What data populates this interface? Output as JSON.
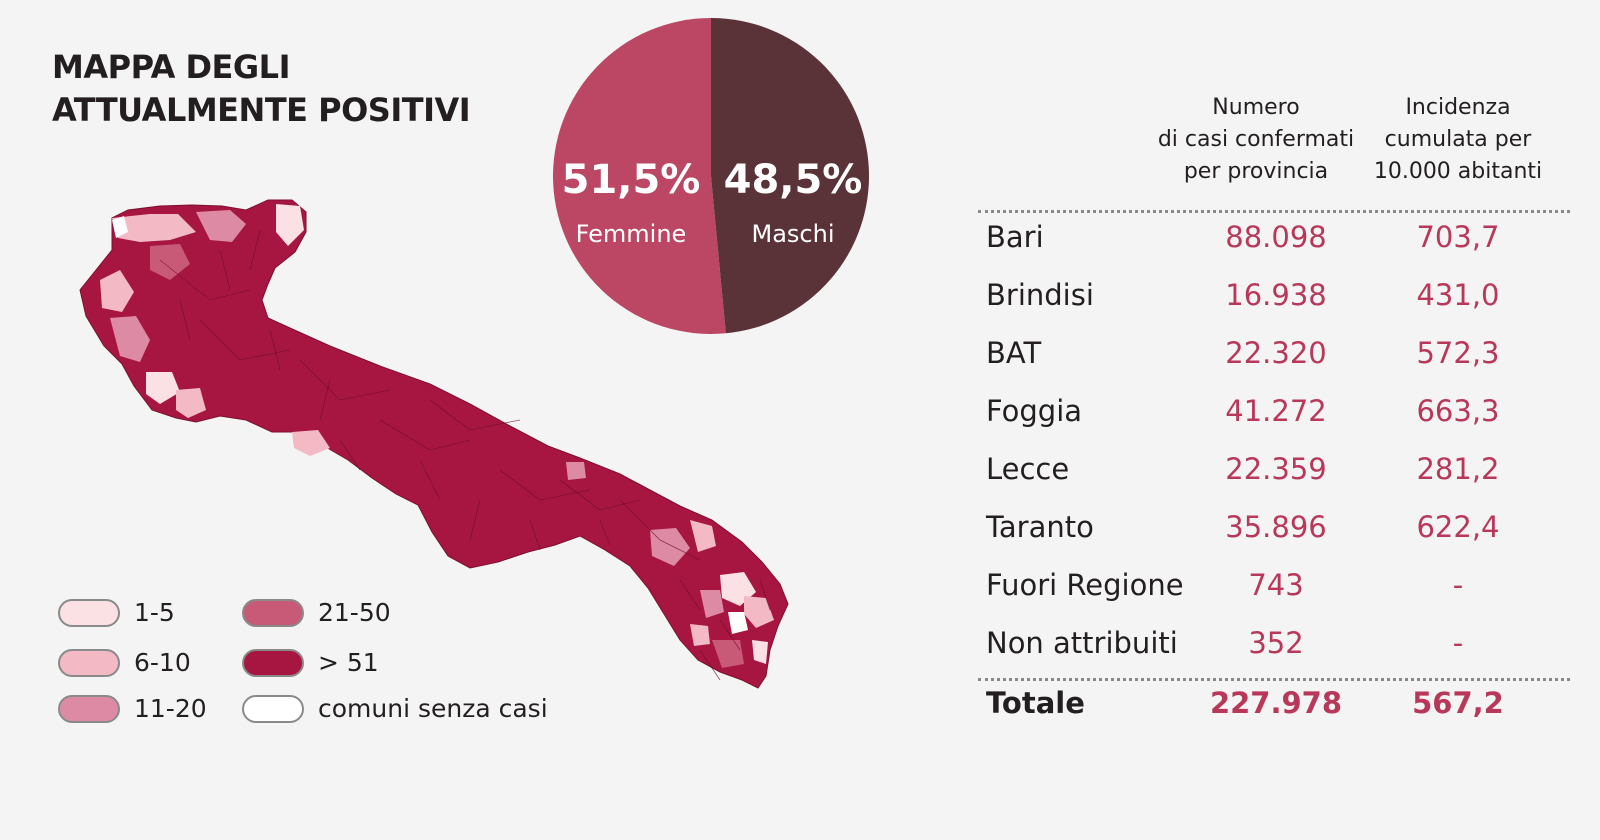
{
  "title": {
    "line1": "MAPPA DEGLI",
    "line2": "ATTUALMENTE POSITIVI"
  },
  "legend": [
    {
      "label": "1-5",
      "color": "#fbe1e3"
    },
    {
      "label": "21-50",
      "color": "#c85a77"
    },
    {
      "label": "6-10",
      "color": "#f3b9c5"
    },
    {
      "label": "> 51",
      "color": "#a71641"
    },
    {
      "label": "11-20",
      "color": "#dd8ba4"
    },
    {
      "label": "comuni senza casi",
      "color": "#ffffff"
    }
  ],
  "colors": {
    "map_fill": "#a71641",
    "femmine": "#bc4765",
    "maschi": "#5a3338",
    "number_text": "#b8385a",
    "background": "#f4f4f4"
  },
  "chart_data": [
    {
      "type": "pie",
      "slices": [
        {
          "label": "Femmine",
          "value": 51.5,
          "display": "51,5%",
          "color": "#bc4765"
        },
        {
          "label": "Maschi",
          "value": 48.5,
          "display": "48,5%",
          "color": "#5a3338"
        }
      ]
    },
    {
      "type": "table",
      "columns": [
        {
          "label": ""
        },
        {
          "label_lines": [
            "Numero",
            "di casi confermati",
            "per provincia"
          ]
        },
        {
          "label_lines": [
            "Incidenza",
            "cumulata per",
            "10.000 abitanti"
          ]
        }
      ],
      "rows": [
        {
          "name": "Bari",
          "cases": "88.098",
          "incidence": "703,7"
        },
        {
          "name": "Brindisi",
          "cases": "16.938",
          "incidence": "431,0"
        },
        {
          "name": "BAT",
          "cases": "22.320",
          "incidence": "572,3"
        },
        {
          "name": "Foggia",
          "cases": "41.272",
          "incidence": "663,3"
        },
        {
          "name": "Lecce",
          "cases": "22.359",
          "incidence": "281,2"
        },
        {
          "name": "Taranto",
          "cases": "35.896",
          "incidence": "622,4"
        },
        {
          "name": "Fuori Regione",
          "cases": "743",
          "incidence": "-"
        },
        {
          "name": "Non attribuiti",
          "cases": "352",
          "incidence": "-"
        }
      ],
      "total": {
        "name": "Totale",
        "cases": "227.978",
        "incidence": "567,2"
      }
    }
  ]
}
